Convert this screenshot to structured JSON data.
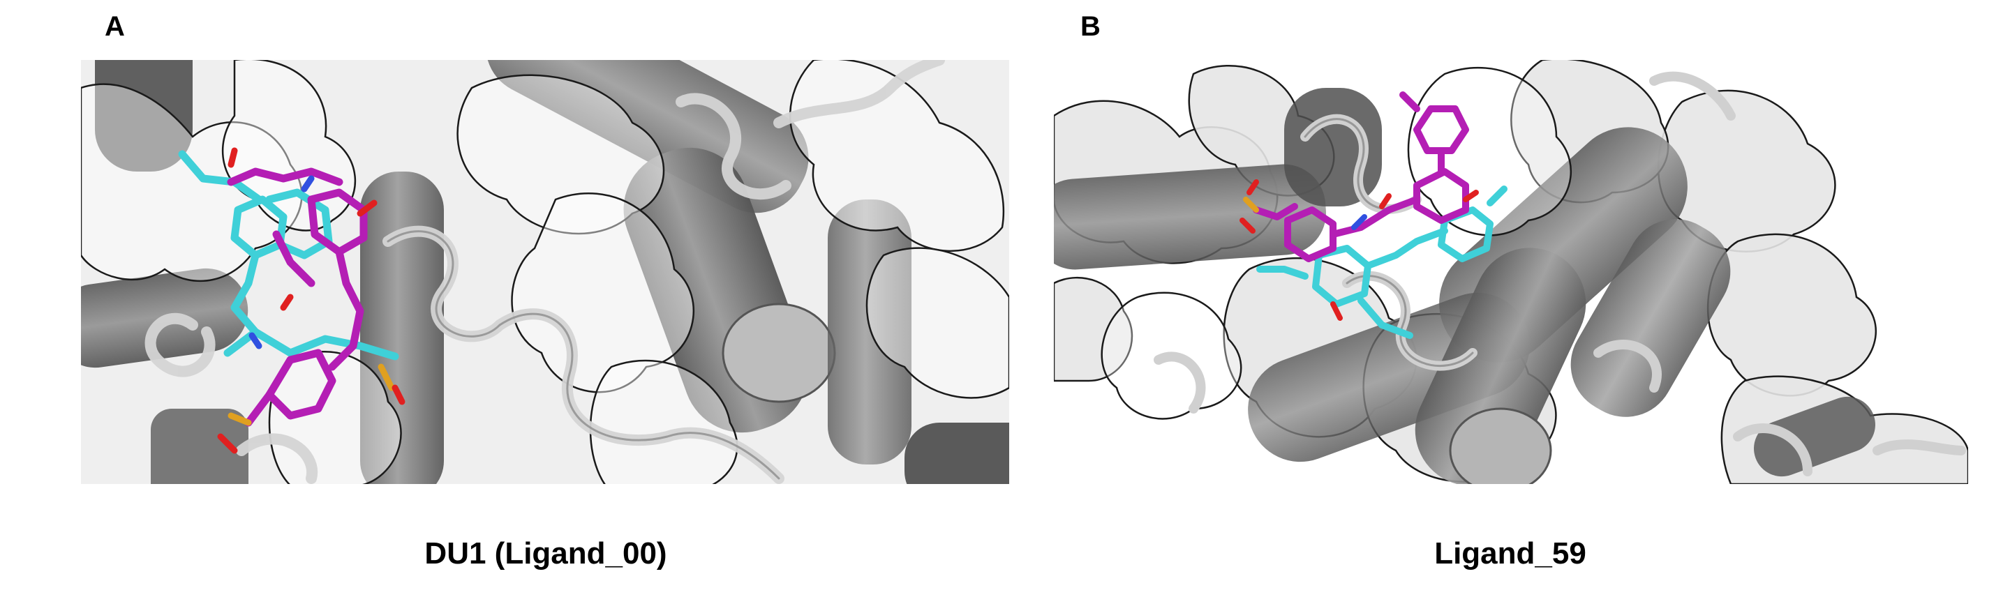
{
  "panels": [
    {
      "letter": "A",
      "caption": "DU1 (Ligand_00)"
    },
    {
      "letter": "B",
      "caption": "Ligand_59"
    }
  ],
  "colors": {
    "surface": "#ffffff",
    "surface_outline": "#1a1a1a",
    "helix": "#6e6e6e",
    "helix_light": "#a8a8a8",
    "coil": "#d0d0d0",
    "ligand_reference": "#3fd0d8",
    "ligand_docked": "#b41eb4",
    "oxygen": "#e02020",
    "nitrogen": "#3050e0",
    "sulfur": "#e0a020"
  }
}
